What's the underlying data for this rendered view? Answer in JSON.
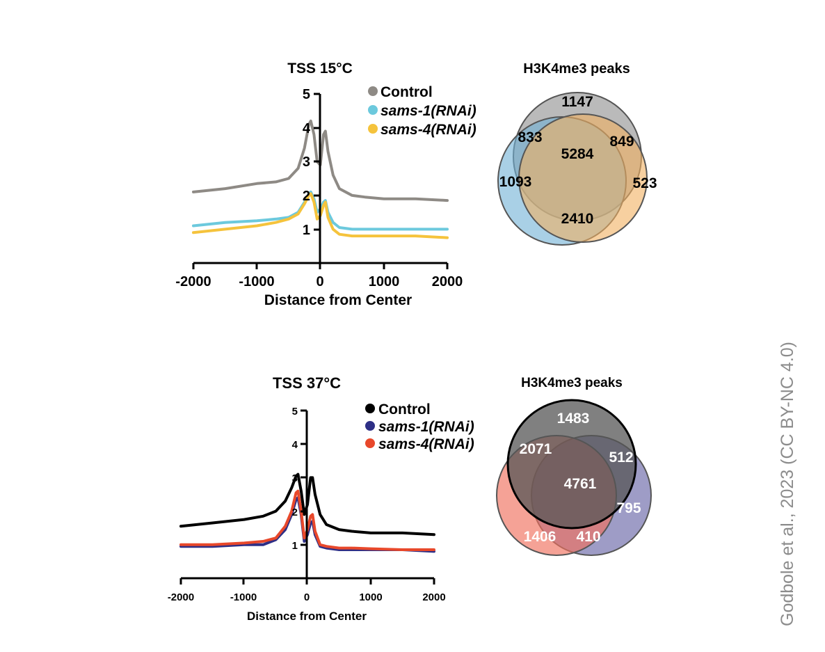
{
  "credit": "Godbole et al., 2023 (CC BY-NC 4.0)",
  "chart_data": [
    {
      "type": "line",
      "title": "TSS 15°C",
      "xlabel": "Distance from Center",
      "ylabel": "",
      "xlim": [
        -2000,
        2000
      ],
      "ylim": [
        0,
        5
      ],
      "xticks": [
        "-2000",
        "-1000",
        "0",
        "1000",
        "2000"
      ],
      "yticks": [
        "1",
        "2",
        "3",
        "4",
        "5"
      ],
      "grid": false,
      "legend_position": "top-right",
      "x": [
        -2000,
        -1500,
        -1000,
        -700,
        -500,
        -350,
        -250,
        -180,
        -150,
        -100,
        -50,
        0,
        50,
        80,
        120,
        200,
        300,
        500,
        700,
        1000,
        1500,
        2000
      ],
      "series": [
        {
          "name": "Control",
          "color": "#8e8a85",
          "values": [
            2.1,
            2.2,
            2.35,
            2.4,
            2.5,
            2.8,
            3.4,
            4.1,
            4.2,
            3.8,
            3.0,
            2.9,
            3.8,
            3.9,
            3.3,
            2.6,
            2.2,
            2.0,
            1.95,
            1.9,
            1.9,
            1.85
          ]
        },
        {
          "name": "sams-1(RNAi)",
          "color": "#6cc9dd",
          "values": [
            1.1,
            1.2,
            1.25,
            1.3,
            1.35,
            1.5,
            1.8,
            2.05,
            2.1,
            1.9,
            1.5,
            1.6,
            1.8,
            1.85,
            1.5,
            1.2,
            1.05,
            1.0,
            1.0,
            1.0,
            1.0,
            1.0
          ]
        },
        {
          "name": "sams-4(RNAi)",
          "color": "#f5c33c",
          "values": [
            0.9,
            1.0,
            1.1,
            1.2,
            1.3,
            1.45,
            1.75,
            2.0,
            2.05,
            1.8,
            1.3,
            1.4,
            1.7,
            1.8,
            1.35,
            1.0,
            0.85,
            0.8,
            0.8,
            0.8,
            0.8,
            0.75
          ]
        }
      ]
    },
    {
      "type": "venn",
      "title": "H3K4me3 peaks",
      "sets": [
        {
          "color": "#8c8c8c",
          "alpha": 0.6,
          "stroke": "#555555"
        },
        {
          "color": "#6fb0d5",
          "alpha": 0.6,
          "stroke": "#555555"
        },
        {
          "color": "#f2b060",
          "alpha": 0.6,
          "stroke": "#555555"
        }
      ],
      "region_values": [
        "1147",
        "833",
        "849",
        "5284",
        "1093",
        "523",
        "2410"
      ],
      "value_color": "#000000"
    },
    {
      "type": "line",
      "title": "TSS 37°C",
      "xlabel": "Distance from Center",
      "ylabel": "",
      "xlim": [
        -2000,
        2000
      ],
      "ylim": [
        0,
        5
      ],
      "xticks": [
        "-2000",
        "-1000",
        "0",
        "1000",
        "2000"
      ],
      "yticks": [
        "1",
        "2",
        "3",
        "4",
        "5"
      ],
      "grid": false,
      "legend_position": "top-right",
      "x": [
        -2000,
        -1500,
        -1000,
        -700,
        -500,
        -350,
        -250,
        -180,
        -150,
        -100,
        -50,
        0,
        50,
        80,
        120,
        200,
        300,
        500,
        700,
        1000,
        1500,
        2000
      ],
      "series": [
        {
          "name": "Control",
          "color": "#000000",
          "values": [
            1.55,
            1.65,
            1.75,
            1.85,
            2.0,
            2.3,
            2.7,
            3.05,
            3.1,
            2.6,
            1.9,
            2.2,
            3.0,
            3.0,
            2.5,
            1.9,
            1.6,
            1.45,
            1.4,
            1.35,
            1.35,
            1.3
          ]
        },
        {
          "name": "sams-1(RNAi)",
          "color": "#2e2f86",
          "values": [
            0.95,
            0.95,
            1.0,
            1.0,
            1.15,
            1.45,
            1.9,
            2.35,
            2.4,
            1.9,
            1.1,
            1.3,
            1.65,
            1.7,
            1.3,
            0.95,
            0.9,
            0.85,
            0.85,
            0.85,
            0.85,
            0.8
          ]
        },
        {
          "name": "sams-4(RNAi)",
          "color": "#e8482b",
          "values": [
            1.0,
            1.0,
            1.05,
            1.1,
            1.2,
            1.55,
            2.0,
            2.55,
            2.6,
            2.0,
            1.2,
            1.45,
            1.85,
            1.9,
            1.4,
            1.0,
            0.95,
            0.9,
            0.9,
            0.88,
            0.85,
            0.85
          ]
        }
      ]
    },
    {
      "type": "venn",
      "title": "H3K4me3 peaks",
      "sets": [
        {
          "color": "#555555",
          "alpha": 0.75,
          "stroke": "#000000"
        },
        {
          "color": "#6a67a8",
          "alpha": 0.65,
          "stroke": "#555555"
        },
        {
          "color": "#f0705e",
          "alpha": 0.65,
          "stroke": "#555555"
        }
      ],
      "region_values": [
        "1483",
        "2071",
        "512",
        "4761",
        "795",
        "1406",
        "410"
      ],
      "value_color": "#ffffff"
    }
  ]
}
